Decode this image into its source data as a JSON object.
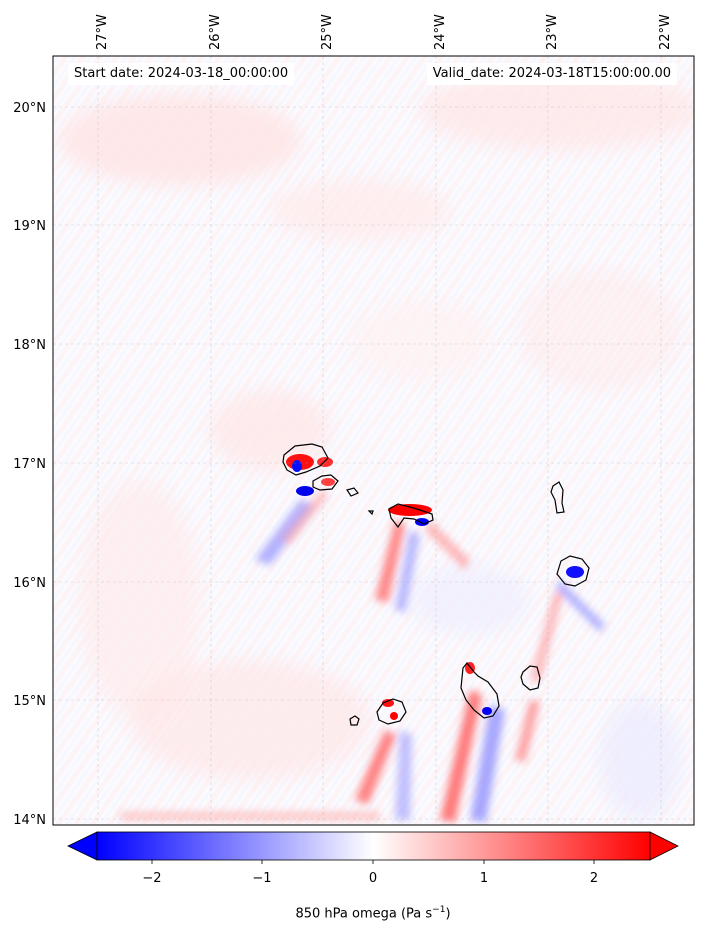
{
  "header": {
    "start_date": "Start date: 2024-03-18_00:00:00",
    "valid_date": "Valid_date: 2024-03-18T15:00:00.00"
  },
  "map": {
    "lon_ticks": [
      "27°W",
      "26°W",
      "25°W",
      "24°W",
      "23°W",
      "22°W"
    ],
    "lat_ticks": [
      "20°N",
      "19°N",
      "18°N",
      "17°N",
      "16°N",
      "15°N",
      "14°N"
    ],
    "lon_range": [
      -27.35,
      -21.75
    ],
    "lat_range": [
      13.95,
      20.45
    ],
    "gridlines": true,
    "coastlines": "Cape Verde Islands"
  },
  "colorbar": {
    "ticks": [
      "−2",
      "−1",
      "0",
      "1",
      "2"
    ],
    "range": [
      -2.5,
      2.5
    ],
    "extend": "both",
    "colormap": "bwr",
    "label_main": "850 hPa omega (Pa s",
    "label_sup": "−1",
    "label_end": ")"
  },
  "colors": {
    "negative": "#0000ff",
    "zero": "#ffffff",
    "positive": "#ff0000",
    "coast": "#000000"
  }
}
